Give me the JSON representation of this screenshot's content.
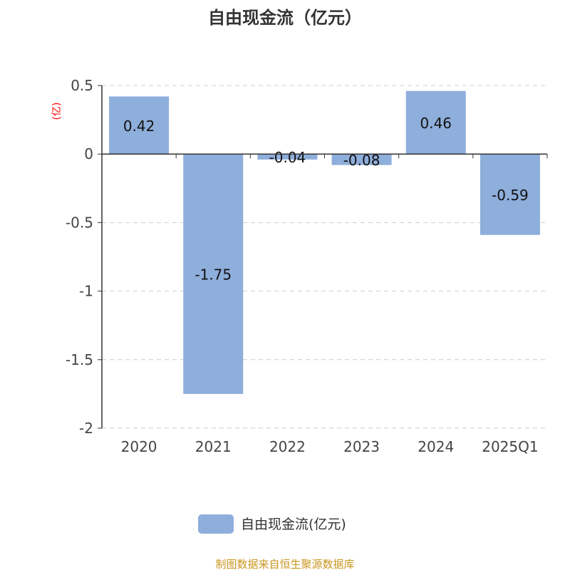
{
  "chart_data": {
    "type": "bar",
    "title": "自由现金流（亿元）",
    "ylabel": "(亿)",
    "categories": [
      "2020",
      "2021",
      "2022",
      "2023",
      "2024",
      "2025Q1"
    ],
    "series": [
      {
        "name": "自由现金流(亿元)",
        "values": [
          0.42,
          -1.75,
          -0.04,
          -0.08,
          0.46,
          -0.59
        ]
      }
    ],
    "data_labels": [
      "0.42",
      "-1.75",
      "-0.04",
      "-0.08",
      "0.46",
      "-0.59"
    ],
    "ylim": [
      -2,
      0.5
    ],
    "yticks": [
      0.5,
      0,
      -0.5,
      -1,
      -1.5,
      -2
    ],
    "ytick_labels": [
      "0.5",
      "0",
      "-0.5",
      "-1",
      "-1.5",
      "-2"
    ],
    "grid": true,
    "legend": "bottom",
    "colors": {
      "bar": "#8eaedb",
      "ylabel": "#ff0000",
      "footer": "#c8961e"
    }
  },
  "footer": "制图数据来自恒生聚源数据库"
}
